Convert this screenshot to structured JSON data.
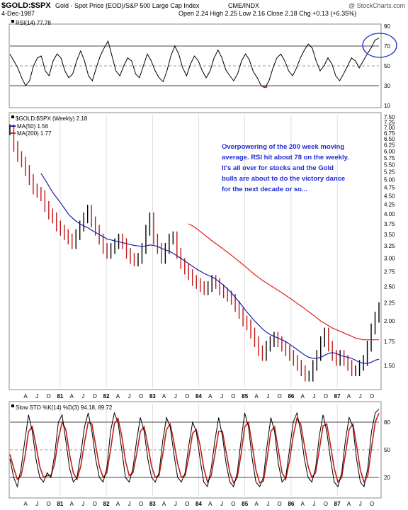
{
  "header": {
    "symbol": "$GOLD:$SPX",
    "description": "Gold - Spot Price (EOD)/S&P 500 Large Cap Index",
    "exchange": "CME/INDX",
    "date": "4-Dec-1987",
    "ohlc": "Open 2.24  High 2.25  Low 2.16  Close 2.18  Chg +0.13 (+6.35%)",
    "watermark": "@ StockCharts.com"
  },
  "chart_data": [
    {
      "type": "line",
      "panel": "rsi",
      "label": "RSI(14) 77.78",
      "ylim": [
        10,
        90
      ],
      "yticks": [
        10,
        30,
        50,
        70,
        90
      ],
      "reference_lines": [
        30,
        50,
        70
      ],
      "series": [
        {
          "values": [
            62,
            55,
            48,
            38,
            30,
            35,
            50,
            58,
            60,
            45,
            40,
            55,
            62,
            58,
            45,
            38,
            42,
            55,
            65,
            55,
            40,
            35,
            48,
            60,
            68,
            75,
            60,
            45,
            40,
            50,
            58,
            55,
            42,
            38,
            50,
            62,
            55,
            45,
            38,
            34,
            45,
            60,
            70,
            62,
            48,
            40,
            52,
            60,
            55,
            45,
            38,
            45,
            58,
            66,
            58,
            46,
            40,
            35,
            42,
            55,
            62,
            56,
            44,
            38,
            30,
            28,
            35,
            48,
            58,
            62,
            55,
            45,
            40,
            48,
            58,
            66,
            72,
            68,
            55,
            45,
            50,
            58,
            52,
            40,
            35,
            42,
            50,
            58,
            55,
            48,
            55,
            62,
            68,
            76,
            78
          ]
        }
      ]
    },
    {
      "type": "line",
      "panel": "price",
      "label": "$GOLD:$SPX (Weekly) 2.18",
      "x_ticks": [
        "A",
        "J",
        "O",
        "81",
        "A",
        "J",
        "O",
        "82",
        "A",
        "J",
        "O",
        "83",
        "A",
        "J",
        "O",
        "84",
        "A",
        "J",
        "O",
        "85",
        "A",
        "J",
        "O",
        "86",
        "A",
        "J",
        "O",
        "87",
        "A",
        "J",
        "O"
      ],
      "yticks": [
        1.5,
        1.75,
        2.0,
        2.25,
        2.5,
        2.75,
        3.0,
        3.25,
        3.5,
        3.75,
        4.0,
        4.25,
        4.5,
        4.75,
        5.0,
        5.25,
        5.5,
        5.75,
        6.0,
        6.25,
        6.5,
        6.75,
        7.0,
        7.25,
        7.5
      ],
      "ylim": [
        1.3,
        7.6
      ],
      "scale": "log",
      "annotation": "Overpowering of the 200 week moving average. RSI hit about 78 on the weekly. It's all over for stocks and the Gold bulls are about to do the victory dance for the next decade or so...",
      "series": [
        {
          "name": "$GOLD:$SPX",
          "values": [
            6.9,
            6.2,
            5.8,
            5.6,
            5.3,
            5.0,
            4.7,
            4.6,
            4.5,
            4.2,
            4.0,
            3.9,
            3.7,
            3.6,
            3.5,
            3.4,
            3.3,
            3.5,
            3.7,
            3.9,
            4.1,
            3.8,
            3.6,
            3.4,
            3.2,
            3.1,
            3.2,
            3.3,
            3.4,
            3.3,
            3.1,
            3.0,
            2.95,
            3.0,
            3.2,
            3.6,
            3.9,
            3.4,
            3.2,
            3.0,
            3.2,
            3.4,
            3.45,
            3.1,
            2.9,
            2.8,
            2.7,
            2.6,
            2.55,
            2.5,
            2.45,
            2.5,
            2.6,
            2.55,
            2.45,
            2.4,
            2.35,
            2.3,
            2.2,
            2.1,
            2.0,
            1.95,
            1.85,
            1.75,
            1.65,
            1.6,
            1.7,
            1.75,
            1.8,
            1.75,
            1.7,
            1.65,
            1.6,
            1.55,
            1.5,
            1.45,
            1.4,
            1.4,
            1.5,
            1.6,
            1.75,
            1.85,
            1.7,
            1.6,
            1.55,
            1.6,
            1.55,
            1.5,
            1.45,
            1.45,
            1.5,
            1.55,
            1.7,
            1.9,
            2.05,
            2.18
          ]
        },
        {
          "name": "MA(50) 1.56",
          "color": "#1e1ea8",
          "values": [
            null,
            null,
            null,
            null,
            null,
            null,
            null,
            null,
            5.2,
            5.0,
            4.8,
            4.6,
            4.45,
            4.3,
            4.15,
            4.0,
            3.9,
            3.82,
            3.75,
            3.7,
            3.66,
            3.6,
            3.55,
            3.5,
            3.45,
            3.4,
            3.38,
            3.36,
            3.34,
            3.32,
            3.3,
            3.28,
            3.26,
            3.25,
            3.24,
            3.25,
            3.27,
            3.26,
            3.24,
            3.2,
            3.17,
            3.14,
            3.1,
            3.05,
            3.0,
            2.95,
            2.9,
            2.85,
            2.8,
            2.76,
            2.72,
            2.69,
            2.66,
            2.62,
            2.57,
            2.52,
            2.46,
            2.4,
            2.33,
            2.26,
            2.19,
            2.12,
            2.06,
            2.0,
            1.95,
            1.9,
            1.86,
            1.83,
            1.81,
            1.79,
            1.77,
            1.75,
            1.72,
            1.69,
            1.66,
            1.63,
            1.6,
            1.58,
            1.57,
            1.57,
            1.58,
            1.6,
            1.62,
            1.63,
            1.62,
            1.6,
            1.59,
            1.58,
            1.57,
            1.55,
            1.53,
            1.52,
            1.52,
            1.53,
            1.55,
            1.56
          ]
        },
        {
          "name": "MA(200) 1.77",
          "color": "#e0201b",
          "values": [
            null,
            null,
            null,
            null,
            null,
            null,
            null,
            null,
            null,
            null,
            null,
            null,
            null,
            null,
            null,
            null,
            null,
            null,
            null,
            null,
            null,
            null,
            null,
            null,
            null,
            null,
            null,
            null,
            null,
            null,
            null,
            null,
            null,
            null,
            null,
            null,
            null,
            null,
            null,
            null,
            null,
            null,
            null,
            null,
            null,
            null,
            3.75,
            3.7,
            3.64,
            3.57,
            3.5,
            3.43,
            3.36,
            3.3,
            3.24,
            3.18,
            3.12,
            3.06,
            3.0,
            2.94,
            2.88,
            2.82,
            2.76,
            2.7,
            2.65,
            2.6,
            2.56,
            2.52,
            2.48,
            2.44,
            2.4,
            2.36,
            2.32,
            2.28,
            2.24,
            2.2,
            2.16,
            2.12,
            2.08,
            2.04,
            2.0,
            1.97,
            1.94,
            1.91,
            1.89,
            1.87,
            1.85,
            1.83,
            1.81,
            1.79,
            1.78,
            1.77,
            1.77,
            1.77,
            1.77,
            1.77
          ]
        }
      ]
    },
    {
      "type": "line",
      "panel": "stochastic",
      "label": "Slow STO %K(14) %D(3) 94.18, 89.72",
      "ylim": [
        0,
        100
      ],
      "yticks": [
        20,
        50,
        80
      ],
      "reference_lines": [
        20,
        50,
        80
      ],
      "x_ticks": [
        "A",
        "J",
        "O",
        "81",
        "A",
        "J",
        "O",
        "82",
        "A",
        "J",
        "O",
        "83",
        "A",
        "J",
        "O",
        "84",
        "A",
        "J",
        "O",
        "85",
        "A",
        "J",
        "O",
        "86",
        "A",
        "J",
        "O",
        "87",
        "A",
        "J",
        "O"
      ],
      "series": [
        {
          "name": "%K 94.18",
          "color": "#000000",
          "values": [
            40,
            20,
            10,
            30,
            60,
            88,
            70,
            40,
            20,
            15,
            25,
            20,
            45,
            80,
            88,
            60,
            30,
            15,
            20,
            45,
            75,
            90,
            70,
            40,
            20,
            15,
            30,
            70,
            90,
            80,
            50,
            20,
            15,
            30,
            60,
            85,
            70,
            40,
            20,
            15,
            25,
            60,
            85,
            75,
            45,
            20,
            15,
            25,
            55,
            80,
            70,
            40,
            15,
            10,
            30,
            60,
            85,
            65,
            35,
            15,
            10,
            25,
            60,
            90,
            75,
            40,
            15,
            10,
            20,
            55,
            85,
            70,
            35,
            15,
            20,
            50,
            80,
            90,
            70,
            40,
            20,
            15,
            30,
            65,
            88,
            70,
            40,
            15,
            10,
            25,
            60,
            85,
            75,
            40,
            15,
            10,
            30,
            70,
            90,
            94
          ]
        },
        {
          "name": "%D 89.72",
          "color": "#c0201b",
          "values": [
            45,
            30,
            18,
            22,
            42,
            70,
            75,
            55,
            32,
            20,
            22,
            22,
            35,
            62,
            80,
            72,
            45,
            25,
            18,
            32,
            58,
            80,
            78,
            55,
            32,
            20,
            25,
            50,
            78,
            84,
            65,
            38,
            22,
            25,
            45,
            70,
            75,
            55,
            32,
            20,
            22,
            45,
            72,
            78,
            58,
            35,
            20,
            22,
            42,
            68,
            72,
            55,
            30,
            15,
            22,
            45,
            70,
            70,
            48,
            25,
            14,
            20,
            45,
            75,
            80,
            55,
            28,
            14,
            16,
            40,
            70,
            75,
            50,
            25,
            18,
            38,
            65,
            84,
            78,
            55,
            32,
            20,
            25,
            50,
            76,
            78,
            55,
            30,
            15,
            20,
            45,
            72,
            78,
            55,
            28,
            15,
            22,
            52,
            80,
            89.72
          ]
        }
      ]
    }
  ]
}
